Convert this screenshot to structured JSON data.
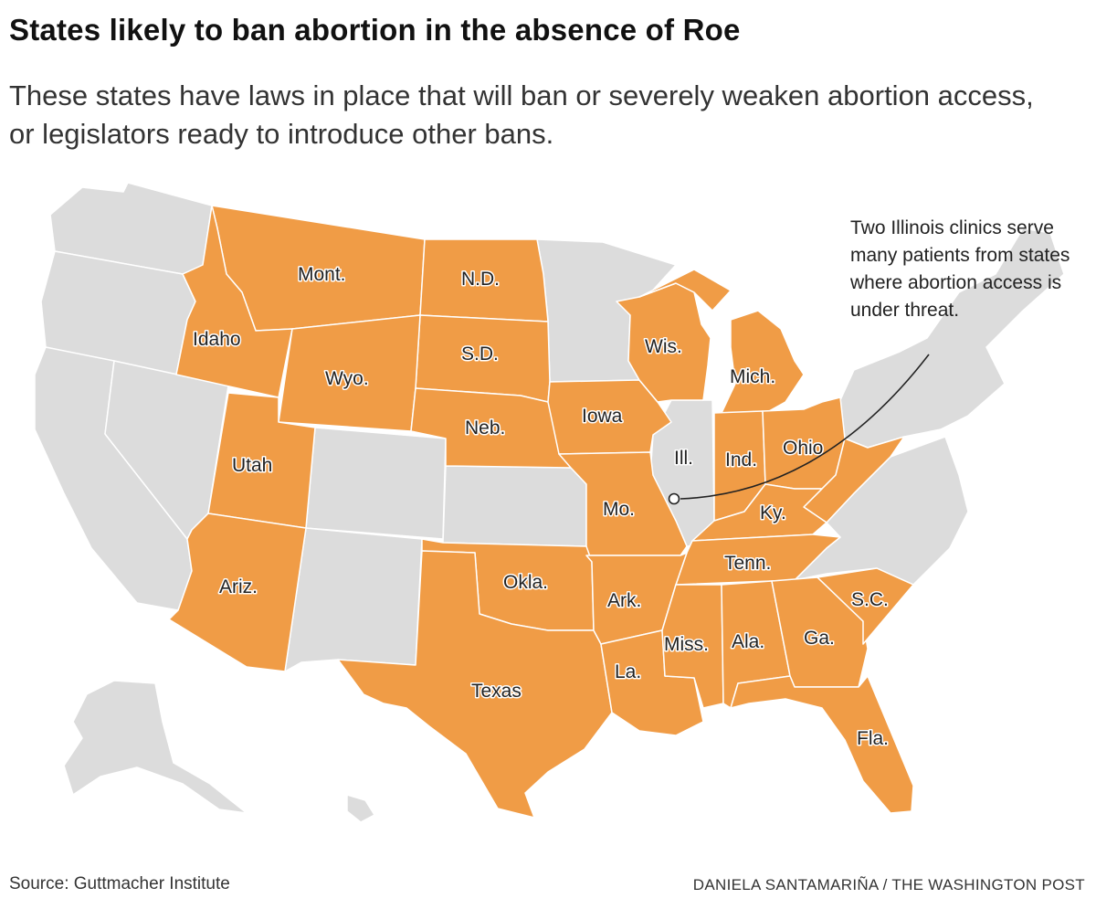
{
  "title": "States likely to ban abortion in the absence of Roe",
  "subtitle": "These states have laws in place that will ban or severely weaken abortion access, or legislators ready to introduce other bans.",
  "annotation": "Two Illinois clinics serve many patients from states where abortion access is under threat.",
  "source": "Source: Guttmacher Institute",
  "credit": "DANIELA SANTAMARIÑA / THE WASHINGTON POST",
  "colors": {
    "highlighted": "#f09c46",
    "other": "#dcdcdc",
    "border": "#ffffff"
  },
  "highlighted_states": [
    "Mont.",
    "N.D.",
    "Idaho",
    "S.D.",
    "Wyo.",
    "Wis.",
    "Mich.",
    "Iowa",
    "Neb.",
    "Utah",
    "Ind.",
    "Ohio",
    "Mo.",
    "Ky.",
    "Ariz.",
    "Tenn.",
    "Okla.",
    "Ark.",
    "S.C.",
    "Miss.",
    "Ala.",
    "Ga.",
    "La.",
    "Texas",
    "Fla.",
    "W.Va."
  ],
  "labels": {
    "mont": "Mont.",
    "nd": "N.D.",
    "idaho": "Idaho",
    "sd": "S.D.",
    "wyo": "Wyo.",
    "wis": "Wis.",
    "mich": "Mich.",
    "iowa": "Iowa",
    "neb": "Neb.",
    "utah": "Utah",
    "ill": "Ill.",
    "ind": "Ind.",
    "ohio": "Ohio",
    "mo": "Mo.",
    "ky": "Ky.",
    "ariz": "Ariz.",
    "tenn": "Tenn.",
    "okla": "Okla.",
    "ark": "Ark.",
    "sc": "S.C.",
    "miss": "Miss.",
    "ala": "Ala.",
    "ga": "Ga.",
    "la": "La.",
    "texas": "Texas",
    "fla": "Fla."
  }
}
